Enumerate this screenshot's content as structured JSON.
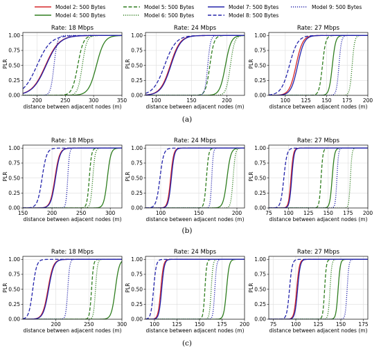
{
  "legend": {
    "columns": [
      [
        {
          "label": "Model 2: 500 Bytes",
          "color": "#d62728",
          "dash": "solid"
        },
        {
          "label": "Model 4: 500 Bytes",
          "color": "#2e7d1e",
          "dash": "solid"
        }
      ],
      [
        {
          "label": "Model 5: 500 Bytes",
          "color": "#2e7d1e",
          "dash": "dashed"
        },
        {
          "label": "Model 6: 500 Bytes",
          "color": "#2e7d1e",
          "dash": "dotted"
        }
      ],
      [
        {
          "label": "Model 7: 500 Bytes",
          "color": "#2222aa",
          "dash": "solid"
        },
        {
          "label": "Model 8: 500 Bytes",
          "color": "#2222aa",
          "dash": "dashed"
        }
      ],
      [
        {
          "label": "Model 9: 500 Bytes",
          "color": "#2222aa",
          "dash": "dotted"
        }
      ]
    ]
  },
  "row_labels": [
    "(a)",
    "(b)",
    "(c)"
  ],
  "colors": {
    "red": "#d62728",
    "green": "#2e7d1e",
    "blue": "#2222aa",
    "grid": "#dddddd"
  },
  "chart_data": [
    {
      "type": "line",
      "row": 0,
      "col": 0,
      "title": "Rate: 18 Mbps",
      "xlabel": "distance between adjacent nodes (m)",
      "ylabel": "PLR",
      "xlim": [
        175,
        350
      ],
      "ylim": [
        0,
        1.05
      ],
      "xticks": [
        200,
        250,
        300,
        350
      ],
      "yticks": [
        0.0,
        0.25,
        0.5,
        0.75,
        1.0
      ],
      "grid": true,
      "series": [
        {
          "name": "Model 2: 500 Bytes",
          "color": "#d62728",
          "dash": "solid",
          "midpoint": 215,
          "width": 12
        },
        {
          "name": "Model 4: 500 Bytes",
          "color": "#2e7d1e",
          "dash": "solid",
          "midpoint": 305,
          "width": 7
        },
        {
          "name": "Model 5: 500 Bytes",
          "color": "#2e7d1e",
          "dash": "dashed",
          "midpoint": 272,
          "width": 5
        },
        {
          "name": "Model 6: 500 Bytes",
          "color": "#2e7d1e",
          "dash": "dotted",
          "midpoint": 280,
          "width": 4
        },
        {
          "name": "Model 7: 500 Bytes",
          "color": "#2222aa",
          "dash": "solid",
          "midpoint": 216,
          "width": 12
        },
        {
          "name": "Model 8: 500 Bytes",
          "color": "#2222aa",
          "dash": "dashed",
          "midpoint": 200,
          "width": 12
        },
        {
          "name": "Model 9: 500 Bytes",
          "color": "#2222aa",
          "dash": "dotted",
          "midpoint": 230,
          "width": 3
        }
      ]
    },
    {
      "type": "line",
      "row": 0,
      "col": 1,
      "title": "Rate: 24 Mbps",
      "xlabel": "distance between adjacent nodes (m)",
      "ylabel": "PLR",
      "xlim": [
        85,
        225
      ],
      "ylim": [
        0,
        1.05
      ],
      "xticks": [
        100,
        150,
        200
      ],
      "yticks": [
        0.0,
        0.25,
        0.5,
        0.75,
        1.0
      ],
      "grid": true,
      "series": [
        {
          "name": "Model 2: 500 Bytes",
          "color": "#d62728",
          "dash": "solid",
          "midpoint": 120,
          "width": 7
        },
        {
          "name": "Model 4: 500 Bytes",
          "color": "#2e7d1e",
          "dash": "solid",
          "midpoint": 198,
          "width": 4
        },
        {
          "name": "Model 5: 500 Bytes",
          "color": "#2e7d1e",
          "dash": "dashed",
          "midpoint": 176,
          "width": 3
        },
        {
          "name": "Model 6: 500 Bytes",
          "color": "#2e7d1e",
          "dash": "dotted",
          "midpoint": 205,
          "width": 3
        },
        {
          "name": "Model 7: 500 Bytes",
          "color": "#2222aa",
          "dash": "solid",
          "midpoint": 121,
          "width": 7
        },
        {
          "name": "Model 8: 500 Bytes",
          "color": "#2222aa",
          "dash": "dashed",
          "midpoint": 112,
          "width": 8
        },
        {
          "name": "Model 9: 500 Bytes",
          "color": "#2222aa",
          "dash": "dotted",
          "midpoint": 173,
          "width": 2
        }
      ]
    },
    {
      "type": "line",
      "row": 0,
      "col": 2,
      "title": "Rate: 27 Mbps",
      "xlabel": "distance between adjacent nodes (m)",
      "ylabel": "PLR",
      "xlim": [
        80,
        200
      ],
      "ylim": [
        0,
        1.05
      ],
      "xticks": [
        100,
        125,
        150,
        175,
        200
      ],
      "yticks": [
        0.0,
        0.25,
        0.5,
        0.75,
        1.0
      ],
      "grid": true,
      "series": [
        {
          "name": "Model 2: 500 Bytes",
          "color": "#d62728",
          "dash": "solid",
          "midpoint": 113,
          "width": 4
        },
        {
          "name": "Model 4: 500 Bytes",
          "color": "#2e7d1e",
          "dash": "solid",
          "midpoint": 157,
          "width": 2
        },
        {
          "name": "Model 5: 500 Bytes",
          "color": "#2e7d1e",
          "dash": "dashed",
          "midpoint": 145,
          "width": 2
        },
        {
          "name": "Model 6: 500 Bytes",
          "color": "#2e7d1e",
          "dash": "dotted",
          "midpoint": 181,
          "width": 1.5
        },
        {
          "name": "Model 7: 500 Bytes",
          "color": "#2222aa",
          "dash": "solid",
          "midpoint": 115,
          "width": 4
        },
        {
          "name": "Model 8: 500 Bytes",
          "color": "#2222aa",
          "dash": "dashed",
          "midpoint": 105,
          "width": 5
        },
        {
          "name": "Model 9: 500 Bytes",
          "color": "#2222aa",
          "dash": "dotted",
          "midpoint": 165,
          "width": 1.5
        }
      ]
    },
    {
      "type": "line",
      "row": 1,
      "col": 0,
      "title": "Rate: 18 Mbps",
      "xlabel": "distance between adjacent nodes (m)",
      "ylabel": "PLR",
      "xlim": [
        150,
        320
      ],
      "ylim": [
        0,
        1.05
      ],
      "xticks": [
        150,
        200,
        250,
        300
      ],
      "yticks": [
        0.0,
        0.25,
        0.5,
        0.75,
        1.0
      ],
      "grid": true,
      "series": [
        {
          "name": "Model 2: 500 Bytes",
          "color": "#d62728",
          "dash": "solid",
          "midpoint": 205,
          "width": 4
        },
        {
          "name": "Model 4: 500 Bytes",
          "color": "#2e7d1e",
          "dash": "solid",
          "midpoint": 295,
          "width": 3
        },
        {
          "name": "Model 5: 500 Bytes",
          "color": "#2e7d1e",
          "dash": "dashed",
          "midpoint": 264,
          "width": 2
        },
        {
          "name": "Model 6: 500 Bytes",
          "color": "#2e7d1e",
          "dash": "dotted",
          "midpoint": 270,
          "width": 2
        },
        {
          "name": "Model 7: 500 Bytes",
          "color": "#2222aa",
          "dash": "solid",
          "midpoint": 206,
          "width": 4
        },
        {
          "name": "Model 8: 500 Bytes",
          "color": "#2222aa",
          "dash": "dashed",
          "midpoint": 183,
          "width": 4
        },
        {
          "name": "Model 9: 500 Bytes",
          "color": "#2222aa",
          "dash": "dotted",
          "midpoint": 227,
          "width": 1.5
        }
      ]
    },
    {
      "type": "line",
      "row": 1,
      "col": 1,
      "title": "Rate: 24 Mbps",
      "xlabel": "distance between adjacent nodes (m)",
      "ylabel": "PLR",
      "xlim": [
        80,
        210
      ],
      "ylim": [
        0,
        1.05
      ],
      "xticks": [
        100,
        150,
        200
      ],
      "yticks": [
        0.0,
        0.25,
        0.5,
        0.75,
        1.0
      ],
      "grid": true,
      "series": [
        {
          "name": "Model 2: 500 Bytes",
          "color": "#d62728",
          "dash": "solid",
          "midpoint": 113,
          "width": 2
        },
        {
          "name": "Model 4: 500 Bytes",
          "color": "#2e7d1e",
          "dash": "solid",
          "midpoint": 187,
          "width": 2.5
        },
        {
          "name": "Model 5: 500 Bytes",
          "color": "#2e7d1e",
          "dash": "dashed",
          "midpoint": 160,
          "width": 1.5
        },
        {
          "name": "Model 6: 500 Bytes",
          "color": "#2e7d1e",
          "dash": "dotted",
          "midpoint": 195,
          "width": 1.5
        },
        {
          "name": "Model 7: 500 Bytes",
          "color": "#2222aa",
          "dash": "solid",
          "midpoint": 114,
          "width": 2
        },
        {
          "name": "Model 8: 500 Bytes",
          "color": "#2222aa",
          "dash": "dashed",
          "midpoint": 99,
          "width": 2.5
        },
        {
          "name": "Model 9: 500 Bytes",
          "color": "#2222aa",
          "dash": "dotted",
          "midpoint": 167,
          "width": 1
        }
      ]
    },
    {
      "type": "line",
      "row": 1,
      "col": 2,
      "title": "Rate: 27 Mbps",
      "xlabel": "distance between adjacent nodes (m)",
      "ylabel": "PLR",
      "xlim": [
        75,
        200
      ],
      "ylim": [
        0,
        1.05
      ],
      "xticks": [
        75,
        100,
        125,
        150,
        175,
        200
      ],
      "yticks": [
        0.0,
        0.25,
        0.5,
        0.75,
        1.0
      ],
      "grid": true,
      "series": [
        {
          "name": "Model 2: 500 Bytes",
          "color": "#d62728",
          "dash": "solid",
          "midpoint": 103,
          "width": 1.5
        },
        {
          "name": "Model 4: 500 Bytes",
          "color": "#2e7d1e",
          "dash": "solid",
          "midpoint": 155,
          "width": 1.5
        },
        {
          "name": "Model 5: 500 Bytes",
          "color": "#2e7d1e",
          "dash": "dashed",
          "midpoint": 141,
          "width": 1.2
        },
        {
          "name": "Model 6: 500 Bytes",
          "color": "#2e7d1e",
          "dash": "dotted",
          "midpoint": 178,
          "width": 1
        },
        {
          "name": "Model 7: 500 Bytes",
          "color": "#2222aa",
          "dash": "solid",
          "midpoint": 104,
          "width": 1.5
        },
        {
          "name": "Model 8: 500 Bytes",
          "color": "#2222aa",
          "dash": "dashed",
          "midpoint": 94,
          "width": 2
        },
        {
          "name": "Model 9: 500 Bytes",
          "color": "#2222aa",
          "dash": "dotted",
          "midpoint": 161,
          "width": 1
        }
      ]
    },
    {
      "type": "line",
      "row": 2,
      "col": 0,
      "title": "Rate: 18 Mbps",
      "xlabel": "distance between adjacent nodes (m)",
      "ylabel": "PLR",
      "xlim": [
        150,
        300
      ],
      "ylim": [
        0,
        1.05
      ],
      "xticks": [
        200,
        250,
        300
      ],
      "yticks": [
        0.0,
        0.25,
        0.5,
        0.75,
        1.0
      ],
      "grid": true,
      "series": [
        {
          "name": "Model 2: 500 Bytes",
          "color": "#d62728",
          "dash": "solid",
          "midpoint": 188,
          "width": 4
        },
        {
          "name": "Model 4: 500 Bytes",
          "color": "#2e7d1e",
          "dash": "solid",
          "midpoint": 290,
          "width": 3
        },
        {
          "name": "Model 5: 500 Bytes",
          "color": "#2e7d1e",
          "dash": "dashed",
          "midpoint": 254,
          "width": 1.5
        },
        {
          "name": "Model 6: 500 Bytes",
          "color": "#2e7d1e",
          "dash": "dotted",
          "midpoint": 260,
          "width": 1.5
        },
        {
          "name": "Model 7: 500 Bytes",
          "color": "#2222aa",
          "dash": "solid",
          "midpoint": 189,
          "width": 4
        },
        {
          "name": "Model 8: 500 Bytes",
          "color": "#2222aa",
          "dash": "dashed",
          "midpoint": 165,
          "width": 3
        },
        {
          "name": "Model 9: 500 Bytes",
          "color": "#2222aa",
          "dash": "dotted",
          "midpoint": 218,
          "width": 1.5
        }
      ]
    },
    {
      "type": "line",
      "row": 2,
      "col": 1,
      "title": "Rate: 24 Mbps",
      "xlabel": "distance between adjacent nodes (m)",
      "ylabel": "PLR",
      "xlim": [
        90,
        200
      ],
      "ylim": [
        0,
        1.05
      ],
      "xticks": [
        100,
        125,
        150,
        175,
        200
      ],
      "yticks": [
        0.0,
        0.25,
        0.5,
        0.75,
        1.0
      ],
      "grid": true,
      "series": [
        {
          "name": "Model 2: 500 Bytes",
          "color": "#d62728",
          "dash": "solid",
          "midpoint": 107,
          "width": 1.5
        },
        {
          "name": "Model 4: 500 Bytes",
          "color": "#2e7d1e",
          "dash": "solid",
          "midpoint": 180,
          "width": 1.5
        },
        {
          "name": "Model 5: 500 Bytes",
          "color": "#2e7d1e",
          "dash": "dashed",
          "midpoint": 156,
          "width": 1
        },
        {
          "name": "Model 6: 500 Bytes",
          "color": "#2e7d1e",
          "dash": "dotted",
          "midpoint": 163,
          "width": 1
        },
        {
          "name": "Model 7: 500 Bytes",
          "color": "#2222aa",
          "dash": "solid",
          "midpoint": 108,
          "width": 1.5
        },
        {
          "name": "Model 8: 500 Bytes",
          "color": "#2222aa",
          "dash": "dashed",
          "midpoint": 99,
          "width": 1.5
        },
        {
          "name": "Model 9: 500 Bytes",
          "color": "#2222aa",
          "dash": "dotted",
          "midpoint": 167,
          "width": 1
        }
      ]
    },
    {
      "type": "line",
      "row": 2,
      "col": 2,
      "title": "Rate: 27 Mbps",
      "xlabel": "distance between adjacent nodes (m)",
      "ylabel": "PLR",
      "xlim": [
        70,
        180
      ],
      "ylim": [
        0,
        1.05
      ],
      "xticks": [
        75,
        100,
        125,
        150,
        175
      ],
      "yticks": [
        0.0,
        0.25,
        0.5,
        0.75,
        1.0
      ],
      "grid": true,
      "series": [
        {
          "name": "Model 2: 500 Bytes",
          "color": "#d62728",
          "dash": "solid",
          "midpoint": 101,
          "width": 1.5
        },
        {
          "name": "Model 4: 500 Bytes",
          "color": "#2e7d1e",
          "dash": "solid",
          "midpoint": 147,
          "width": 1.2
        },
        {
          "name": "Model 5: 500 Bytes",
          "color": "#2e7d1e",
          "dash": "dashed",
          "midpoint": 132,
          "width": 1
        },
        {
          "name": "Model 6: 500 Bytes",
          "color": "#2e7d1e",
          "dash": "dotted",
          "midpoint": 138,
          "width": 1
        },
        {
          "name": "Model 7: 500 Bytes",
          "color": "#2222aa",
          "dash": "solid",
          "midpoint": 102,
          "width": 1.5
        },
        {
          "name": "Model 8: 500 Bytes",
          "color": "#2222aa",
          "dash": "dashed",
          "midpoint": 93,
          "width": 1.5
        },
        {
          "name": "Model 9: 500 Bytes",
          "color": "#2222aa",
          "dash": "dotted",
          "midpoint": 157,
          "width": 1
        }
      ]
    }
  ]
}
